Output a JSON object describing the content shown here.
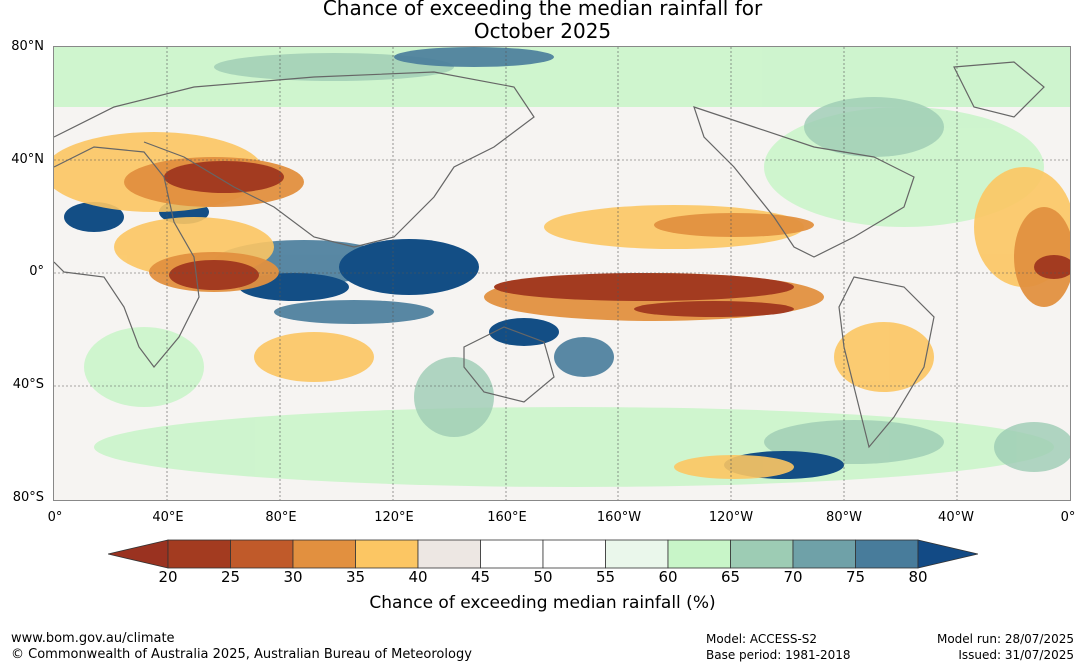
{
  "title_line1": "Chance of exceeding the median rainfall for",
  "title_line2": "October 2025",
  "lat_labels": [
    "80°N",
    "40°N",
    "0°",
    "40°S",
    "80°S"
  ],
  "lon_labels": [
    "0°",
    "40°E",
    "80°E",
    "120°E",
    "160°E",
    "160°W",
    "120°W",
    "80°W",
    "40°W",
    "0°"
  ],
  "colorbar": {
    "ticks": [
      "20",
      "25",
      "30",
      "35",
      "40",
      "45",
      "50",
      "55",
      "60",
      "65",
      "70",
      "75",
      "80"
    ],
    "colors": [
      "#a33b20",
      "#c05a2a",
      "#e2903f",
      "#fcc663",
      "#ede7e3",
      "#ffffff",
      "#ffffff",
      "#eaf7eb",
      "#c8f5c8",
      "#9dccb4",
      "#6fa1a8",
      "#487c9b",
      "#134e85"
    ],
    "below_color": "#9a3220",
    "above_color": "#124a85",
    "label": "Chance of exceeding median rainfall (%)"
  },
  "footer": {
    "website": "www.bom.gov.au/climate",
    "copyright": "© Commonwealth of Australia 2025, Australian Bureau of Meteorology",
    "model": "Model: ACCESS-S2",
    "base_period": "Base period: 1981-2018",
    "model_run": "Model run: 28/07/2025",
    "issued": "Issued: 31/07/2025"
  }
}
